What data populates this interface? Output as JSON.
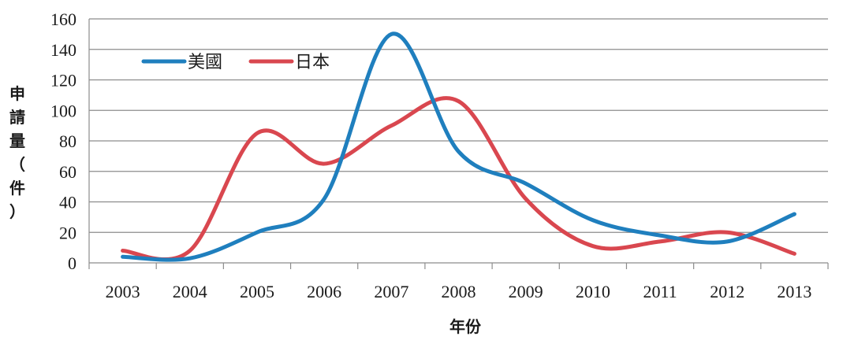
{
  "chart_data": {
    "type": "line",
    "smooth": true,
    "categories": [
      "2003",
      "2004",
      "2005",
      "2006",
      "2007",
      "2008",
      "2009",
      "2010",
      "2011",
      "2012",
      "2013"
    ],
    "series": [
      {
        "name": "美國",
        "color": "#1f7fbe",
        "values": [
          4,
          3,
          20,
          42,
          150,
          73,
          52,
          28,
          18,
          14,
          32
        ]
      },
      {
        "name": "日本",
        "color": "#d9474f",
        "values": [
          8,
          8,
          85,
          65,
          90,
          106,
          42,
          11,
          14,
          20,
          6
        ]
      }
    ],
    "y_ticks": [
      "0",
      "20",
      "40",
      "60",
      "80",
      "100",
      "120",
      "140",
      "160"
    ],
    "ylim": [
      0,
      160
    ],
    "xlabel": "年份",
    "ylabel": "申請量（件）",
    "ylabel_chars": [
      "申",
      "請",
      "量",
      "（",
      "件",
      "）"
    ],
    "grid": true,
    "legend_position": "top-left"
  }
}
